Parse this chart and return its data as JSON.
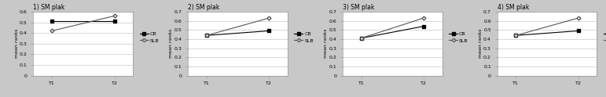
{
  "panels": [
    {
      "title": "1) SM plak",
      "ylabel": "mean ranks",
      "xlabel_t1": "T1",
      "xlabel_t2": "T2",
      "ylim": [
        0,
        0.6
      ],
      "yticks": [
        0,
        0.1,
        0.2,
        0.3,
        0.4,
        0.5,
        0.6
      ],
      "cb": [
        0.51,
        0.51
      ],
      "slb": [
        0.42,
        0.56
      ]
    },
    {
      "title": "2) SM plak",
      "ylabel": "mean ranks",
      "xlabel_t1": "T1",
      "xlabel_t2": "T2",
      "ylim": [
        0,
        0.7
      ],
      "yticks": [
        0,
        0.1,
        0.2,
        0.3,
        0.4,
        0.5,
        0.6,
        0.7
      ],
      "cb": [
        0.44,
        0.49
      ],
      "slb": [
        0.44,
        0.63
      ]
    },
    {
      "title": "3) SM plak",
      "ylabel": "mean ranks",
      "xlabel_t1": "T1",
      "xlabel_t2": "T2",
      "ylim": [
        0,
        0.7
      ],
      "yticks": [
        0,
        0.1,
        0.2,
        0.3,
        0.4,
        0.5,
        0.6,
        0.7
      ],
      "cb": [
        0.41,
        0.54
      ],
      "slb": [
        0.41,
        0.63
      ]
    },
    {
      "title": "4) SM plak",
      "ylabel": "mean ranks",
      "xlabel_t1": "T1",
      "xlabel_t2": "T2",
      "ylim": [
        0,
        0.7
      ],
      "yticks": [
        0,
        0.1,
        0.2,
        0.3,
        0.4,
        0.5,
        0.6,
        0.7
      ],
      "cb": [
        0.44,
        0.49
      ],
      "slb": [
        0.44,
        0.63
      ]
    }
  ],
  "legend_cb_label": "CB",
  "legend_slb_label": "SLB",
  "cb_color": "#000000",
  "slb_color": "#555555",
  "bg_color": "#c8c8c8",
  "plot_bg_color": "#ffffff",
  "grid_color": "#c8c8c8",
  "title_fontsize": 5.5,
  "label_fontsize": 4.5,
  "tick_fontsize": 4.5,
  "legend_fontsize": 4.5
}
